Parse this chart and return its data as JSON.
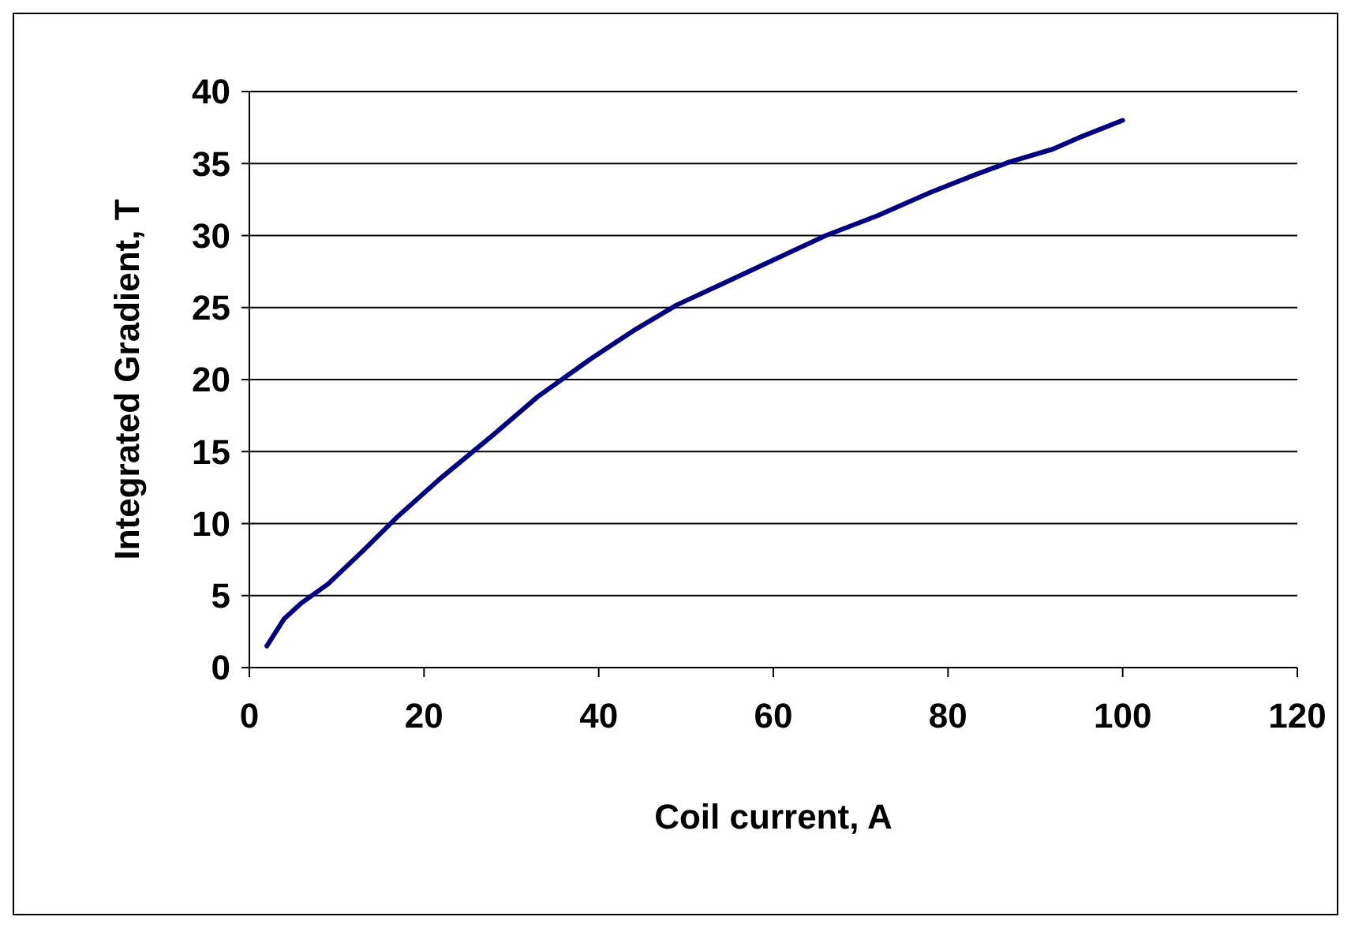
{
  "chart_data": {
    "type": "line",
    "xlabel": "Coil current, A",
    "ylabel": "Integrated Gradient, T",
    "xlim": [
      0,
      120
    ],
    "xticks": [
      0,
      20,
      40,
      60,
      80,
      100,
      120
    ],
    "ylim": [
      0,
      40
    ],
    "yticks": [
      0,
      5,
      10,
      15,
      20,
      25,
      30,
      35,
      40
    ],
    "grid": "y",
    "marker": "none",
    "line_style": "solid",
    "series": [
      {
        "color": "#000080",
        "x": [
          2,
          4,
          6,
          9,
          13,
          17,
          22,
          28,
          33,
          39,
          44,
          49,
          54,
          60,
          66,
          72,
          78,
          83,
          87,
          92,
          95,
          100
        ],
        "values": [
          1.5,
          3.4,
          4.5,
          5.8,
          8.1,
          10.5,
          13.2,
          16.2,
          18.8,
          21.4,
          23.4,
          25.2,
          26.6,
          28.3,
          30,
          31.4,
          33,
          34.2,
          35.1,
          36,
          36.8,
          38
        ]
      }
    ]
  }
}
